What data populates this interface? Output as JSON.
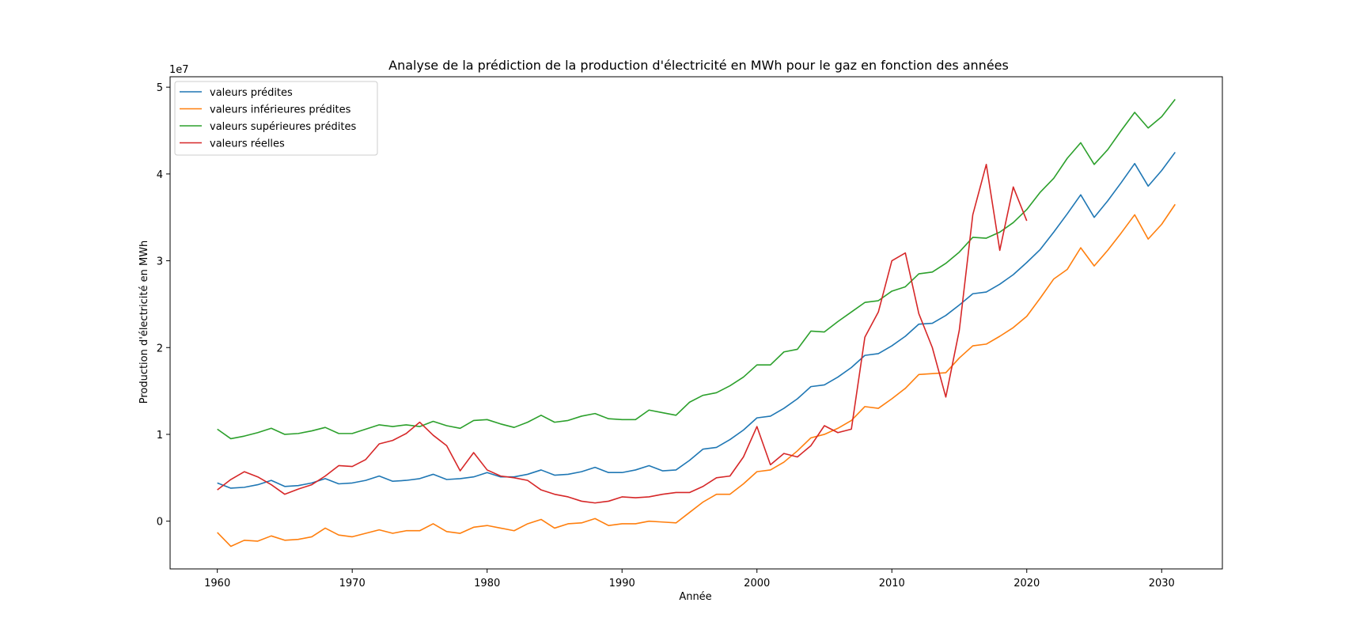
{
  "chart_data": {
    "type": "line",
    "title": "Analyse de la prédiction de la production d'électricité en MWh pour le gaz en fonction des années",
    "xlabel": "Année",
    "ylabel": "Production d'électricité en MWh",
    "y_offset_label": "1e7",
    "xlim": [
      1956.5,
      2034.5
    ],
    "ylim": [
      -5.5,
      51.2
    ],
    "x_ticks": [
      1960,
      1970,
      1980,
      1990,
      2000,
      2010,
      2020,
      2030
    ],
    "x_tick_labels": [
      "1960",
      "1970",
      "1980",
      "1990",
      "2000",
      "2010",
      "2020",
      "2030"
    ],
    "y_ticks": [
      0,
      10,
      20,
      30,
      40,
      50
    ],
    "y_tick_labels": [
      "0",
      "1",
      "2",
      "3",
      "4",
      "5"
    ],
    "grid": false,
    "legend_position": "upper-left",
    "series": [
      {
        "name": "valeurs prédites",
        "color": "#1f77b4",
        "x_start": 1960,
        "values": [
          4.4,
          3.8,
          3.9,
          4.2,
          4.7,
          4.0,
          4.1,
          4.4,
          4.9,
          4.3,
          4.4,
          4.7,
          5.2,
          4.6,
          4.7,
          4.9,
          5.4,
          4.8,
          4.9,
          5.1,
          5.6,
          5.1,
          5.1,
          5.4,
          5.9,
          5.3,
          5.4,
          5.7,
          6.2,
          5.6,
          5.6,
          5.9,
          6.4,
          5.8,
          5.9,
          7.0,
          8.3,
          8.5,
          9.4,
          10.5,
          11.9,
          12.1,
          13.0,
          14.1,
          15.5,
          15.7,
          16.6,
          17.7,
          19.1,
          19.3,
          20.2,
          21.3,
          22.7,
          22.8,
          23.7,
          24.9,
          26.2,
          26.4,
          27.3,
          28.4,
          29.8,
          31.3,
          33.3,
          35.4,
          37.6,
          35.0,
          36.9,
          39.0,
          41.2,
          38.6,
          40.4,
          42.5
        ]
      },
      {
        "name": "valeurs inférieures prédites",
        "color": "#ff7f0e",
        "x_start": 1960,
        "values": [
          -1.3,
          -2.9,
          -2.2,
          -2.3,
          -1.7,
          -2.2,
          -2.1,
          -1.8,
          -0.8,
          -1.6,
          -1.8,
          -1.4,
          -1.0,
          -1.4,
          -1.1,
          -1.1,
          -0.3,
          -1.2,
          -1.4,
          -0.7,
          -0.5,
          -0.8,
          -1.1,
          -0.3,
          0.2,
          -0.8,
          -0.3,
          -0.2,
          0.3,
          -0.5,
          -0.3,
          -0.3,
          0.0,
          -0.1,
          -0.2,
          1.0,
          2.2,
          3.1,
          3.1,
          4.3,
          5.7,
          5.9,
          6.8,
          8.1,
          9.6,
          10.0,
          10.7,
          11.6,
          13.2,
          13.0,
          14.1,
          15.3,
          16.9,
          17.0,
          17.1,
          18.8,
          20.2,
          20.4,
          21.3,
          22.3,
          23.6,
          25.7,
          27.9,
          29.0,
          31.5,
          29.4,
          31.2,
          33.2,
          35.3,
          32.5,
          34.2,
          36.5
        ]
      },
      {
        "name": "valeurs supérieures prédites",
        "color": "#2ca02c",
        "x_start": 1960,
        "values": [
          10.6,
          9.5,
          9.8,
          10.2,
          10.7,
          10.0,
          10.1,
          10.4,
          10.8,
          10.1,
          10.1,
          10.6,
          11.1,
          10.9,
          11.1,
          10.9,
          11.5,
          11.0,
          10.7,
          11.6,
          11.7,
          11.2,
          10.8,
          11.4,
          12.2,
          11.4,
          11.6,
          12.1,
          12.4,
          11.8,
          11.7,
          11.7,
          12.8,
          12.5,
          12.2,
          13.7,
          14.5,
          14.8,
          15.6,
          16.6,
          18.0,
          18.0,
          19.5,
          19.8,
          21.9,
          21.8,
          23.0,
          24.1,
          25.2,
          25.4,
          26.5,
          27.0,
          28.5,
          28.7,
          29.7,
          31.0,
          32.7,
          32.6,
          33.3,
          34.4,
          35.9,
          37.9,
          39.5,
          41.8,
          43.6,
          41.1,
          42.8,
          45.0,
          47.1,
          45.3,
          46.6,
          48.6
        ]
      },
      {
        "name": "valeurs réelles",
        "color": "#d62728",
        "x_start": 1960,
        "values": [
          3.6,
          4.8,
          5.7,
          5.1,
          4.2,
          3.1,
          3.7,
          4.2,
          5.2,
          6.4,
          6.3,
          7.1,
          8.9,
          9.3,
          10.1,
          11.4,
          9.9,
          8.7,
          5.8,
          7.9,
          5.9,
          5.2,
          5.0,
          4.7,
          3.6,
          3.1,
          2.8,
          2.3,
          2.1,
          2.3,
          2.8,
          2.7,
          2.8,
          3.1,
          3.3,
          3.3,
          4.0,
          5.0,
          5.2,
          7.4,
          10.9,
          6.5,
          7.8,
          7.4,
          8.7,
          11.0,
          10.2,
          10.6,
          21.2,
          24.1,
          30.0,
          30.9,
          23.9,
          20.0,
          14.3,
          22.0,
          35.3,
          41.1,
          31.2,
          38.5,
          34.6
        ]
      }
    ]
  }
}
